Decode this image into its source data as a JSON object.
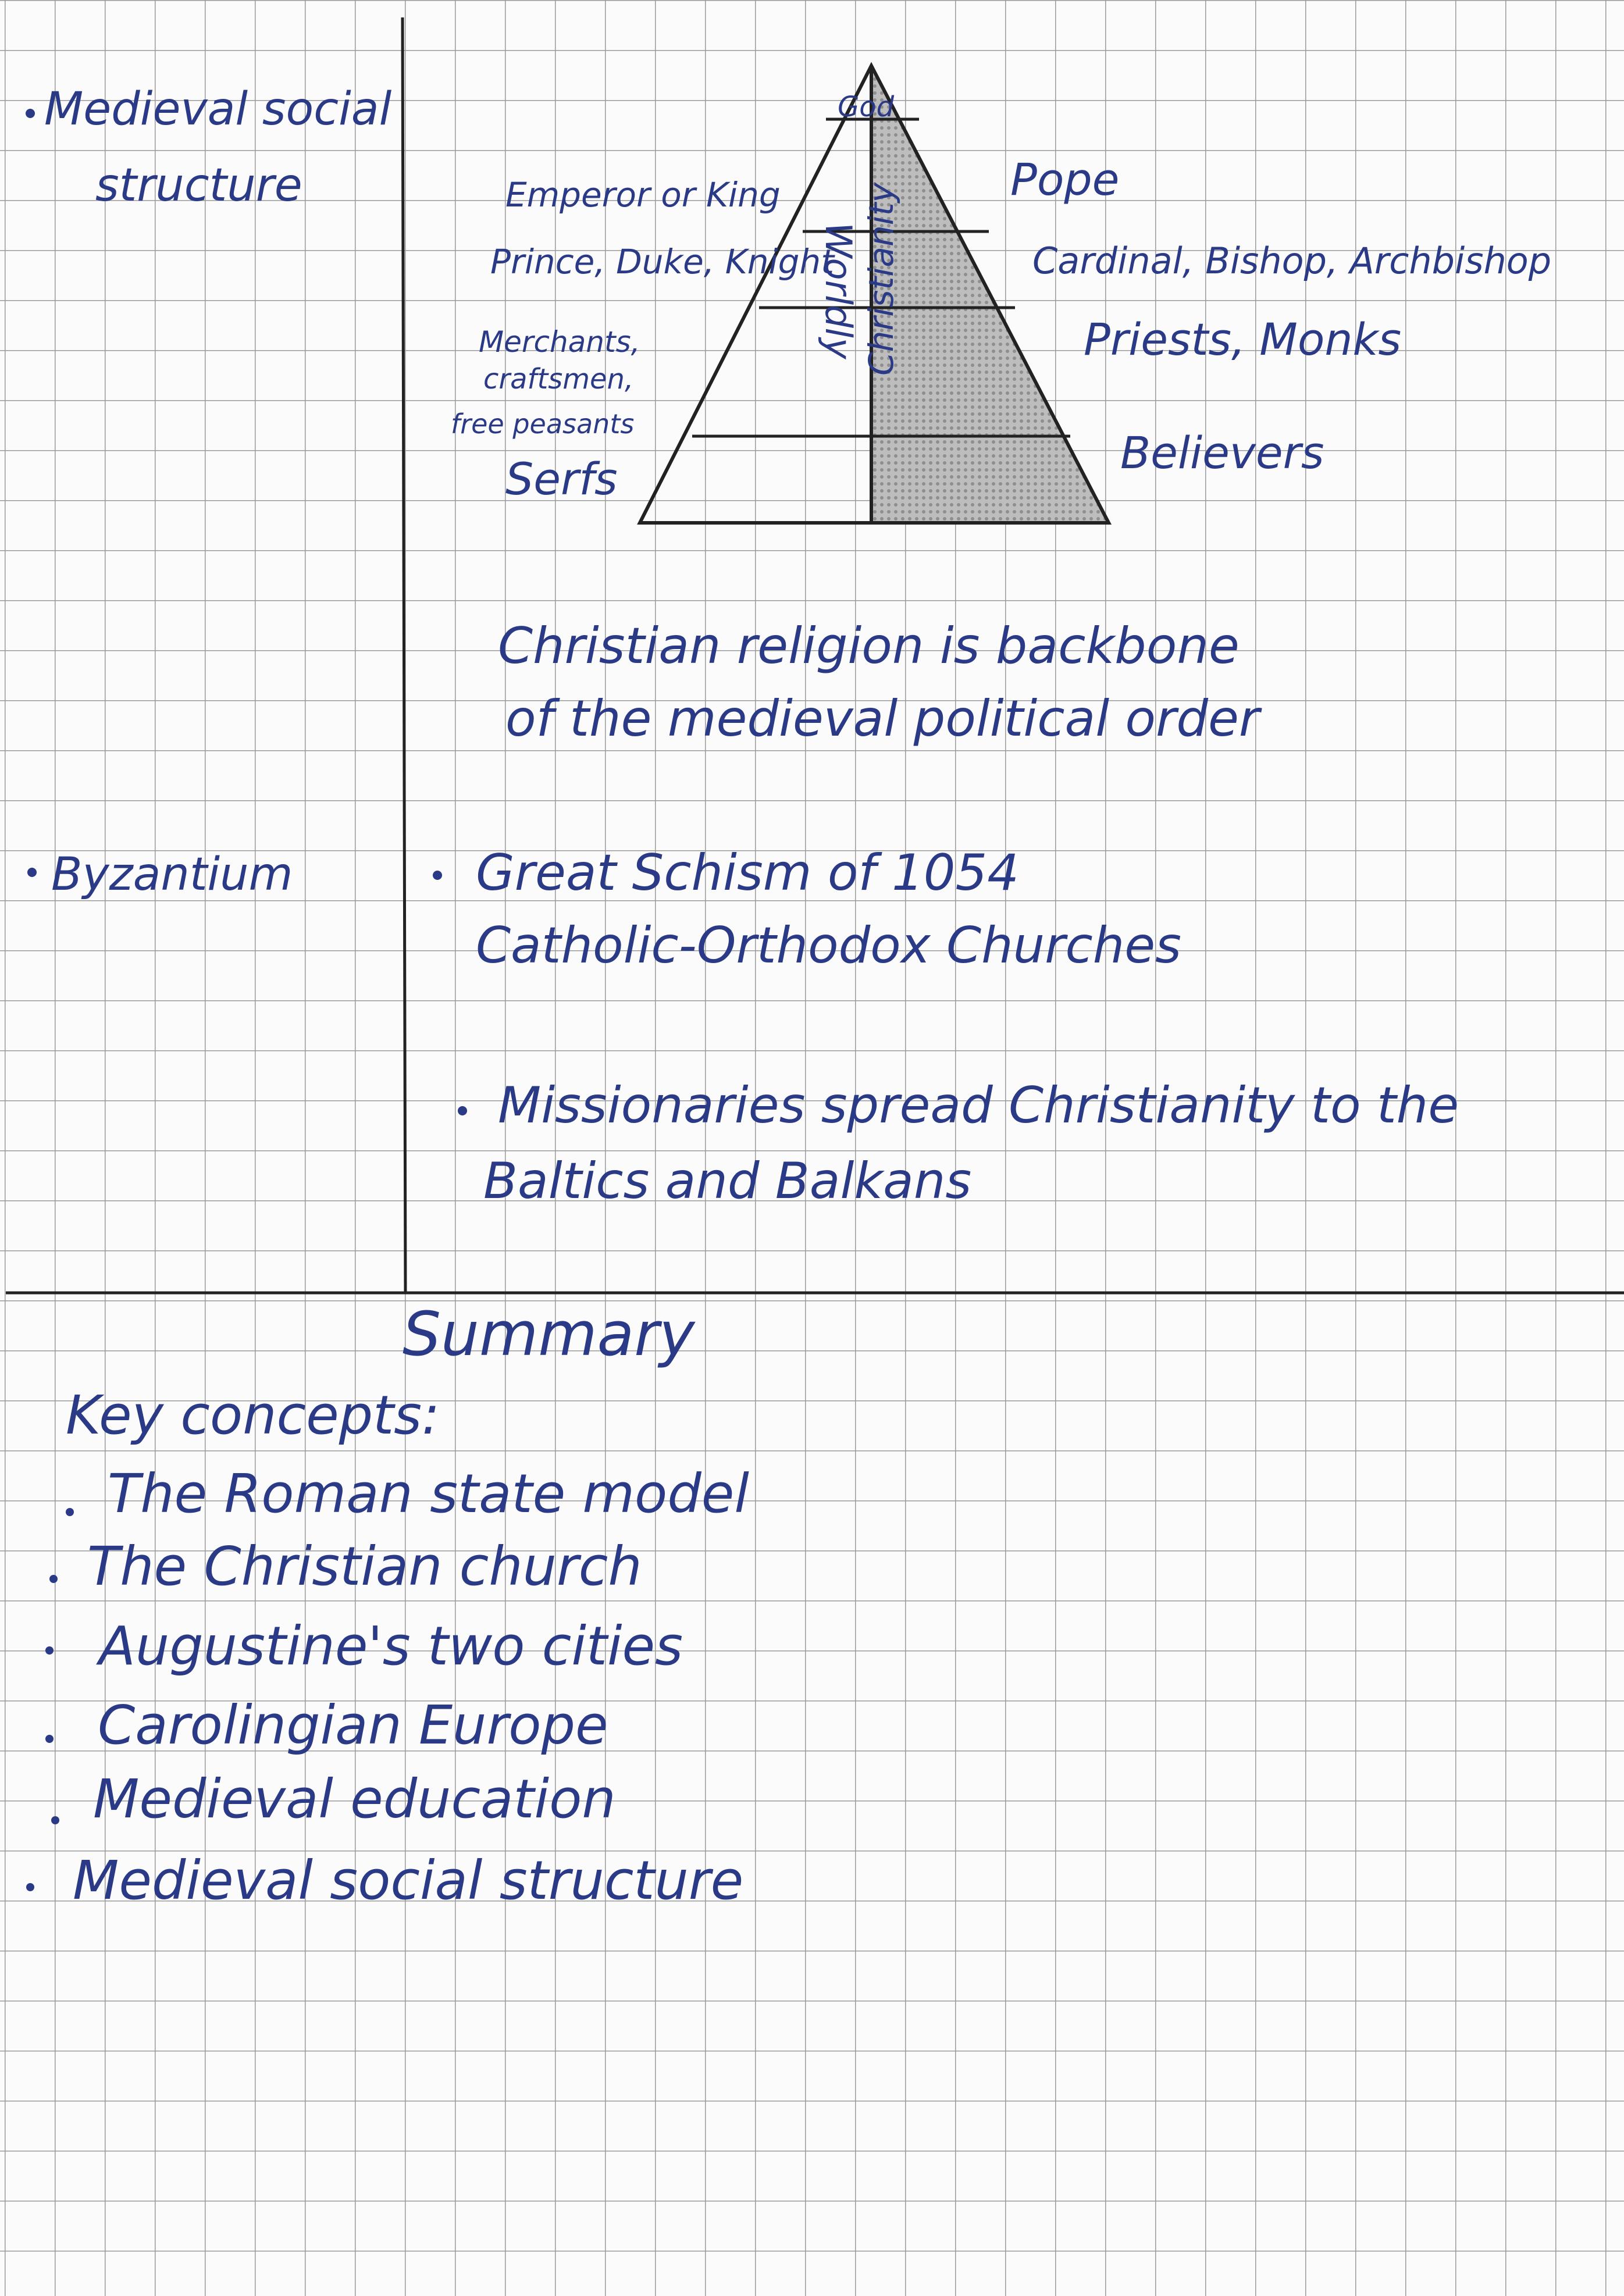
{
  "left_column": {
    "topics": [
      [
        "Medieval social",
        "structure"
      ],
      [
        "Byzantium"
      ]
    ]
  },
  "pyramid": {
    "apex": "God",
    "worldly_label": "Worldly",
    "church_label": "Christianity",
    "worldly_levels": [
      [
        "Emperor or King"
      ],
      [
        "Prince, Duke, Knight"
      ],
      [
        "Merchants,",
        "craftsmen,",
        "free peasants"
      ],
      [
        "Serfs"
      ]
    ],
    "church_levels": [
      "Pope",
      "Cardinal, Bishop, Archbishop",
      "Priests, Monks",
      "Believers"
    ]
  },
  "notes": [
    [
      "Christian religion is backbone",
      "of the medieval political order"
    ],
    [
      "Great Schism of 1054",
      "Catholic-Orthodox Churches"
    ],
    [
      "Missionaries spread Christianity to the",
      "Baltics and Balkans"
    ]
  ],
  "summary": {
    "title": "Summary",
    "subtitle": "Key concepts:",
    "items": [
      "The Roman state model",
      "The Christian church",
      "Augustine's two cities",
      "Carolingian Europe",
      "Medieval education",
      "Medieval social structure"
    ]
  }
}
